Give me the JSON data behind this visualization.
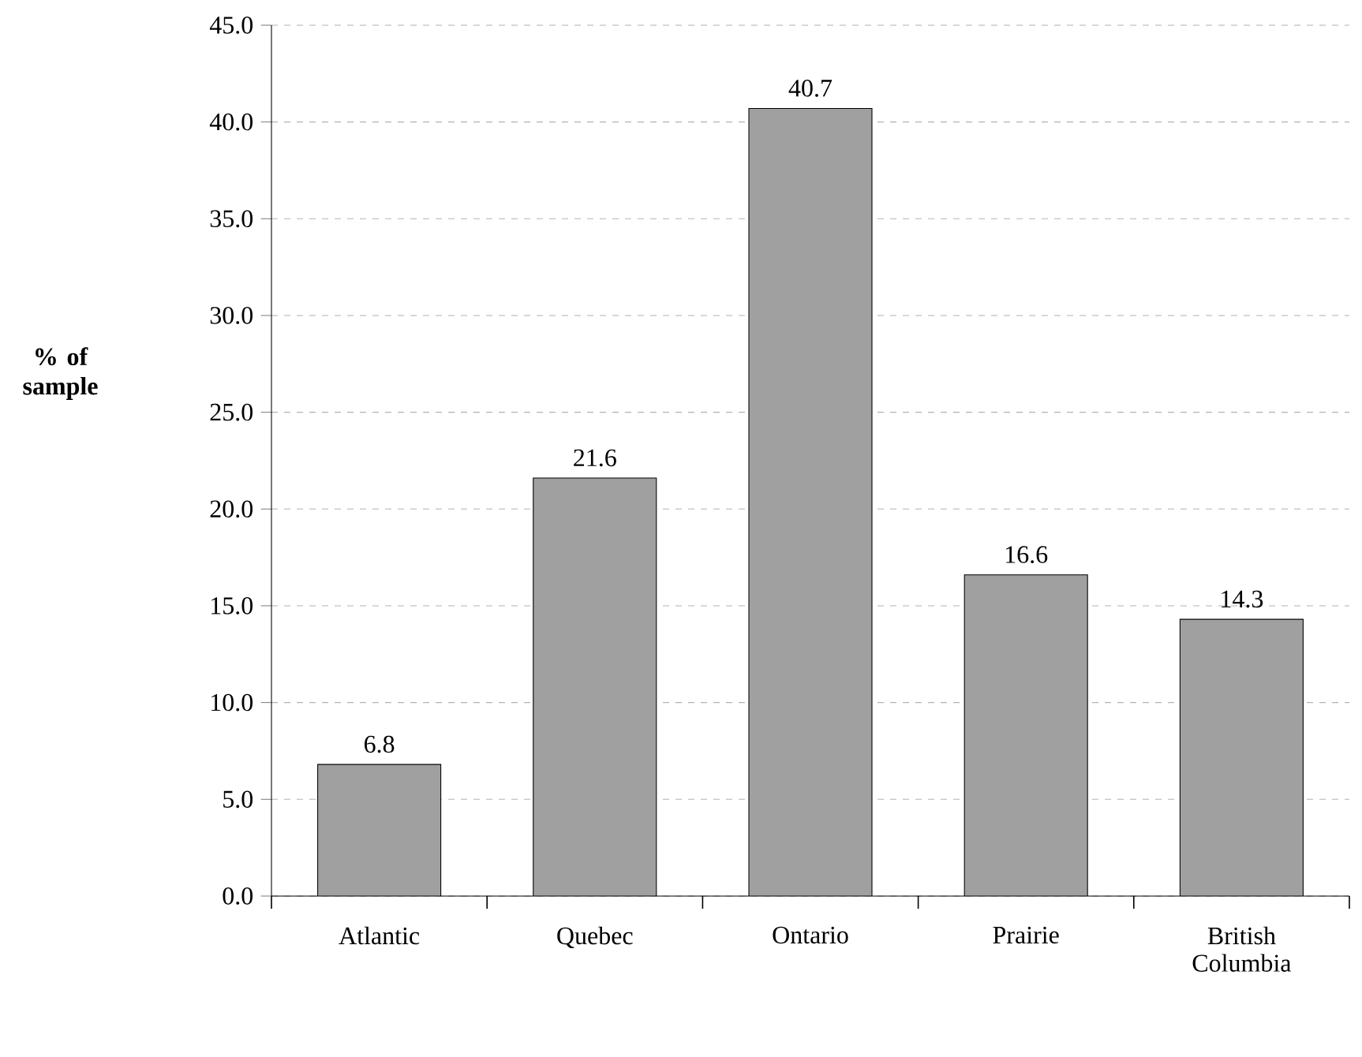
{
  "chart_data": {
    "type": "bar",
    "ylabel": "% of sample",
    "categories": [
      "Atlantic",
      "Quebec",
      "Ontario",
      "Prairie",
      "British Columbia"
    ],
    "values": [
      6.8,
      21.6,
      40.7,
      16.6,
      14.3
    ],
    "color": "#a0a0a0",
    "ylim": [
      0,
      45
    ],
    "yticks": [
      {
        "value": 0,
        "label": "0.0"
      },
      {
        "value": 5,
        "label": "5.0"
      },
      {
        "value": 10,
        "label": "10.0"
      },
      {
        "value": 15,
        "label": "15.0"
      },
      {
        "value": 20,
        "label": "20.0"
      },
      {
        "value": 25,
        "label": "25.0"
      },
      {
        "value": 30,
        "label": "30.0"
      },
      {
        "value": 35,
        "label": "35.0"
      },
      {
        "value": 40,
        "label": "40.0"
      },
      {
        "value": 45,
        "label": "45.0"
      }
    ],
    "grid": "y",
    "data_labels": true
  }
}
